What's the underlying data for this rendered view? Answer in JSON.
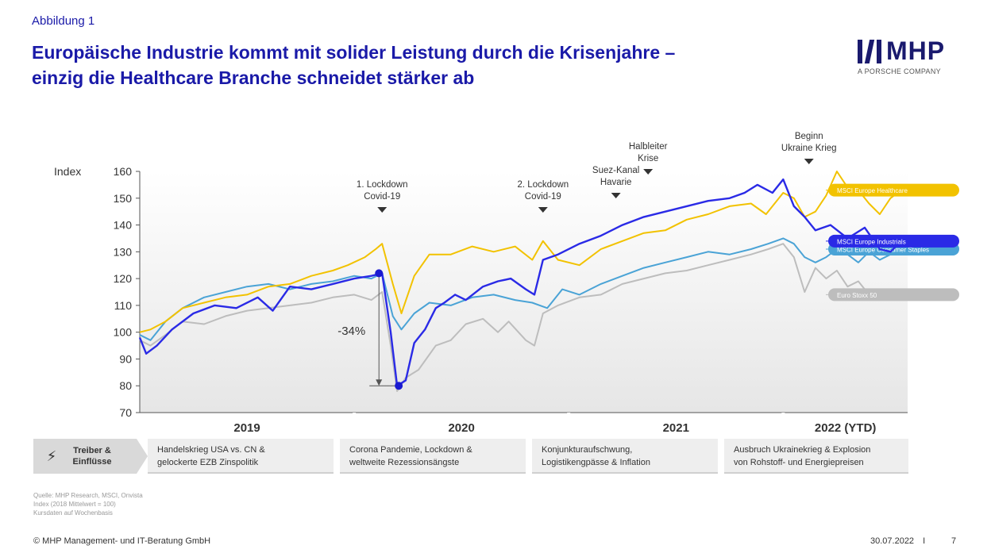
{
  "header": {
    "figure_label": "Abbildung 1",
    "title_line1": "Europäische Industrie kommt mit solider Leistung durch die Krisenjahre –",
    "title_line2": "einzig die Healthcare Branche schneidet stärker ab"
  },
  "logo": {
    "name": "MHP",
    "subtitle": "A PORSCHE COMPANY"
  },
  "chart_data": {
    "type": "line",
    "ylabel": "Index",
    "ylim": [
      70,
      160
    ],
    "yticks": [
      70,
      80,
      90,
      100,
      110,
      120,
      130,
      140,
      150,
      160
    ],
    "xlim": [
      2019.0,
      2022.58
    ],
    "period_labels": [
      "2019",
      "2020",
      "2021",
      "2022 (YTD)"
    ],
    "series": [
      {
        "name": "MSCI Europe Healthcare",
        "color": "#f2c200",
        "x": [
          2019.0,
          2019.05,
          2019.12,
          2019.2,
          2019.3,
          2019.4,
          2019.5,
          2019.6,
          2019.7,
          2019.8,
          2019.9,
          2019.97,
          2020.05,
          2020.1,
          2020.13,
          2020.18,
          2020.22,
          2020.28,
          2020.35,
          2020.45,
          2020.55,
          2020.65,
          2020.75,
          2020.83,
          2020.88,
          2020.95,
          2021.05,
          2021.15,
          2021.25,
          2021.35,
          2021.45,
          2021.55,
          2021.65,
          2021.75,
          2021.85,
          2021.92,
          2022.0,
          2022.05,
          2022.1,
          2022.15,
          2022.2,
          2022.25,
          2022.3,
          2022.35,
          2022.4,
          2022.45,
          2022.5,
          2022.55
        ],
        "y": [
          100,
          101,
          104,
          109,
          111,
          113,
          114,
          117,
          118,
          121,
          123,
          125,
          128,
          131,
          133,
          118,
          107,
          121,
          129,
          129,
          132,
          130,
          132,
          127,
          134,
          127,
          125,
          131,
          134,
          137,
          138,
          142,
          144,
          147,
          148,
          144,
          152,
          150,
          143,
          145,
          151,
          160,
          154,
          153,
          148,
          144,
          150,
          153
        ]
      },
      {
        "name": "MSCI Europe Industrials",
        "color": "#2a2ae6",
        "x": [
          2019.0,
          2019.03,
          2019.08,
          2019.15,
          2019.25,
          2019.35,
          2019.45,
          2019.55,
          2019.62,
          2019.7,
          2019.8,
          2019.9,
          2020.0,
          2020.08,
          2020.13,
          2020.17,
          2020.2,
          2020.24,
          2020.28,
          2020.33,
          2020.38,
          2020.42,
          2020.47,
          2020.52,
          2020.6,
          2020.67,
          2020.73,
          2020.8,
          2020.84,
          2020.88,
          2020.95,
          2021.05,
          2021.15,
          2021.25,
          2021.35,
          2021.45,
          2021.55,
          2021.65,
          2021.75,
          2021.82,
          2021.88,
          2021.95,
          2022.0,
          2022.05,
          2022.1,
          2022.15,
          2022.22,
          2022.3,
          2022.38,
          2022.45,
          2022.5,
          2022.55
        ],
        "y": [
          98,
          92,
          95,
          101,
          107,
          110,
          109,
          113,
          108,
          117,
          116,
          118,
          120,
          121,
          122,
          100,
          80,
          82,
          96,
          101,
          109,
          111,
          114,
          112,
          117,
          119,
          120,
          116,
          114,
          127,
          129,
          133,
          136,
          140,
          143,
          145,
          147,
          149,
          150,
          152,
          155,
          152,
          157,
          147,
          143,
          138,
          140,
          135,
          139,
          131,
          130,
          134
        ]
      },
      {
        "name": "MSCI Europe Consumer Staples",
        "color": "#4aa3d6",
        "x": [
          2019.0,
          2019.05,
          2019.12,
          2019.2,
          2019.3,
          2019.4,
          2019.5,
          2019.6,
          2019.7,
          2019.8,
          2019.9,
          2020.0,
          2020.08,
          2020.13,
          2020.18,
          2020.22,
          2020.28,
          2020.35,
          2020.45,
          2020.55,
          2020.65,
          2020.75,
          2020.83,
          2020.9,
          2020.97,
          2021.05,
          2021.15,
          2021.25,
          2021.35,
          2021.45,
          2021.55,
          2021.65,
          2021.75,
          2021.85,
          2021.93,
          2022.0,
          2022.05,
          2022.1,
          2022.15,
          2022.2,
          2022.25,
          2022.3,
          2022.35,
          2022.4,
          2022.45,
          2022.5,
          2022.55
        ],
        "y": [
          99,
          97,
          104,
          109,
          113,
          115,
          117,
          118,
          116,
          118,
          119,
          121,
          120,
          122,
          106,
          101,
          107,
          111,
          110,
          113,
          114,
          112,
          111,
          109,
          116,
          114,
          118,
          121,
          124,
          126,
          128,
          130,
          129,
          131,
          133,
          135,
          133,
          128,
          126,
          128,
          131,
          129,
          126,
          130,
          127,
          129,
          131
        ]
      },
      {
        "name": "Euro Stoxx 50",
        "color": "#bdbdbd",
        "x": [
          2019.0,
          2019.05,
          2019.12,
          2019.2,
          2019.3,
          2019.4,
          2019.5,
          2019.6,
          2019.7,
          2019.8,
          2019.9,
          2020.0,
          2020.08,
          2020.13,
          2020.17,
          2020.2,
          2020.24,
          2020.3,
          2020.38,
          2020.45,
          2020.52,
          2020.6,
          2020.67,
          2020.72,
          2020.8,
          2020.84,
          2020.88,
          2020.95,
          2021.05,
          2021.15,
          2021.25,
          2021.35,
          2021.45,
          2021.55,
          2021.65,
          2021.75,
          2021.85,
          2021.93,
          2022.0,
          2022.05,
          2022.1,
          2022.15,
          2022.2,
          2022.25,
          2022.3,
          2022.35,
          2022.4,
          2022.45,
          2022.5,
          2022.55
        ],
        "y": [
          97,
          95,
          99,
          104,
          103,
          106,
          108,
          109,
          110,
          111,
          113,
          114,
          112,
          115,
          95,
          78,
          83,
          86,
          95,
          97,
          103,
          105,
          100,
          104,
          97,
          95,
          107,
          110,
          113,
          114,
          118,
          120,
          122,
          123,
          125,
          127,
          129,
          131,
          133,
          128,
          115,
          124,
          120,
          123,
          117,
          119,
          114,
          116,
          113,
          114
        ]
      }
    ],
    "events": [
      {
        "label_line1": "1. Lockdown",
        "label_line2": "Covid-19",
        "x": 2020.13
      },
      {
        "label_line1": "2. Lockdown",
        "label_line2": "Covid-19",
        "x": 2020.88
      },
      {
        "label_line1": "Suez-Kanal",
        "label_line2": "Havarie",
        "x": 2021.22
      },
      {
        "label_line1": "Halbleiter",
        "label_line2": "Krise",
        "x": 2021.37
      },
      {
        "label_line1": "Beginn",
        "label_line2": "Ukraine Krieg",
        "x": 2022.12
      }
    ],
    "drawdown": {
      "label": "-34%",
      "from": {
        "x": 2020.13,
        "y": 122
      },
      "to": {
        "x": 2020.2,
        "y": 80
      }
    },
    "legend_placement": "right"
  },
  "drivers": {
    "label_line1": "Treiber &",
    "label_line2": "Einflüsse",
    "items": [
      {
        "line1": "Handelskrieg USA vs. CN &",
        "line2": "gelockerte EZB Zinspolitik"
      },
      {
        "line1": "Corona Pandemie, Lockdown &",
        "line2": "weltweite Rezessionsängste"
      },
      {
        "line1": "Konjunkturaufschwung,",
        "line2": "Logistikengpässe & Inflation"
      },
      {
        "line1": "Ausbruch Ukrainekrieg & Explosion",
        "line2": "von Rohstoff- und Energiepreisen"
      }
    ]
  },
  "source": {
    "line1": "Quelle: MHP Research, MSCI, Onvista",
    "line2": "Index (2018 Mittelwert = 100)",
    "line3": "Kursdaten auf Wochenbasis"
  },
  "footer": {
    "copyright": "© MHP Management- und IT-Beratung GmbH",
    "date": "30.07.2022",
    "separator": "I",
    "page": "7"
  }
}
